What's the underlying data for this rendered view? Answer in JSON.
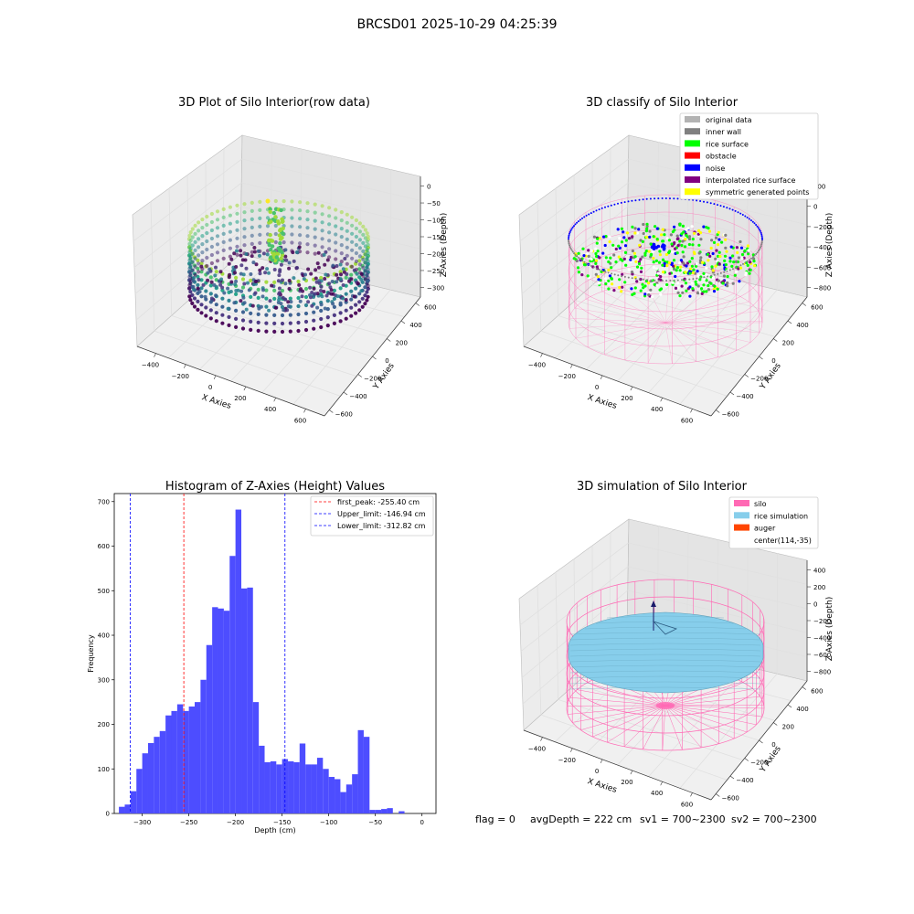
{
  "figure": {
    "suptitle": "BRCSD01 2025-10-29 04:25:39",
    "status_line": {
      "flag": "flag = 0",
      "avg_depth": "avgDepth = 222 cm",
      "sv1": "sv1 = 700~2300",
      "sv2": "sv2 = 700~2300"
    }
  },
  "colors": {
    "histogram_bar": "#4d4dff",
    "first_peak_line": "#ff0000",
    "limit_lines": "#0000ff",
    "silo": "#ff69b4",
    "rice_simulation": "#87ceeb",
    "auger": "#ff4500",
    "rice_surface": "#00ff00",
    "noise": "#0000ff",
    "obstacle": "#ff0000",
    "inner_wall": "#808080",
    "original_data": "#b3b3b3",
    "interpolated": "#800080",
    "symmetric": "#ffff00"
  },
  "chart_data": [
    {
      "type": "scatter",
      "subtype": "3d-scatter",
      "title": "3D Plot of Silo Interior(row data)",
      "xlabel": "X Axies",
      "ylabel": "Y Axies",
      "zlabel": "Z Axies (Depth)",
      "x_ticks": [
        "−400",
        "−200",
        "0",
        "200",
        "400",
        "600"
      ],
      "y_ticks": [
        "−600",
        "−400",
        "−200",
        "0",
        "200",
        "400",
        "600"
      ],
      "z_ticks": [
        "0",
        "−50",
        "−100",
        "−150",
        "−200",
        "−250",
        "−300"
      ],
      "colormap": "viridis"
    },
    {
      "type": "scatter",
      "subtype": "3d-scatter",
      "title": "3D classify of Silo Interior",
      "xlabel": "X Axies",
      "ylabel": "Y Axies",
      "zlabel": "Z Axies (Depth)",
      "x_ticks": [
        "−400",
        "−200",
        "0",
        "200",
        "400",
        "600"
      ],
      "y_ticks": [
        "−600",
        "−400",
        "−200",
        "0",
        "200",
        "400",
        "600"
      ],
      "z_ticks": [
        "200",
        "0",
        "−200",
        "−400",
        "−600",
        "−800"
      ],
      "legend_position": "upper-right",
      "legend": [
        {
          "label": "original data",
          "color": "#b3b3b3"
        },
        {
          "label": "inner wall",
          "color": "#808080"
        },
        {
          "label": "rice surface",
          "color": "#00ff00"
        },
        {
          "label": "obstacle",
          "color": "#ff0000"
        },
        {
          "label": "noise",
          "color": "#0000ff"
        },
        {
          "label": "interpolated rice surface",
          "color": "#800080"
        },
        {
          "label": "symmetric generated points",
          "color": "#ffff00"
        }
      ]
    },
    {
      "type": "bar",
      "subtype": "histogram",
      "title": "Histogram of Z-Axies (Height) Values",
      "xlabel": "Depth (cm)",
      "ylabel": "Frequency",
      "xlim": [
        -330,
        15
      ],
      "ylim": [
        0,
        718
      ],
      "x_ticks": [
        -300,
        -250,
        -200,
        -150,
        -100,
        -50,
        0
      ],
      "y_ticks": [
        0,
        100,
        200,
        300,
        400,
        500,
        600,
        700
      ],
      "x_tick_labels": [
        "−300",
        "−250",
        "−200",
        "−150",
        "−100",
        "−50",
        "0"
      ],
      "y_tick_labels": [
        "0",
        "100",
        "200",
        "300",
        "400",
        "500",
        "600",
        "700"
      ],
      "bin_start": -325,
      "bin_width": 6.25,
      "values": [
        15,
        20,
        50,
        100,
        135,
        158,
        172,
        185,
        220,
        230,
        245,
        230,
        240,
        250,
        300,
        378,
        463,
        460,
        455,
        578,
        682,
        505,
        507,
        250,
        152,
        115,
        117,
        110,
        122,
        117,
        115,
        157,
        110,
        110,
        125,
        100,
        82,
        77,
        48,
        65,
        88,
        187,
        172,
        8,
        8,
        10,
        12,
        0,
        5
      ],
      "vlines": [
        {
          "x": -255.4,
          "label": "first_peak: -255.40 cm",
          "color": "#ff0000"
        },
        {
          "x": -146.94,
          "label": "Upper_limit: -146.94 cm",
          "color": "#0000ff"
        },
        {
          "x": -312.82,
          "label": "Lower_limit: -312.82 cm",
          "color": "#0000ff"
        }
      ],
      "legend_position": "upper-right",
      "grid": false
    },
    {
      "type": "scatter",
      "subtype": "3d-surface",
      "title": "3D simulation of Silo Interior",
      "xlabel": "X Axies",
      "ylabel": "Y Axies",
      "zlabel": "Z Axies (Depth)",
      "x_ticks": [
        "−400",
        "−200",
        "0",
        "200",
        "400",
        "600"
      ],
      "y_ticks": [
        "−600",
        "−400",
        "−200",
        "0",
        "200",
        "400",
        "600"
      ],
      "z_ticks": [
        "400",
        "200",
        "0",
        "−200",
        "−400",
        "−600",
        "−800"
      ],
      "legend_position": "upper-right",
      "legend": [
        {
          "label": "silo",
          "color": "#ff69b4"
        },
        {
          "label": "rice simulation",
          "color": "#87ceeb"
        },
        {
          "label": "auger",
          "color": "#ff4500"
        },
        {
          "label": "center(114,-35)",
          "color": ""
        }
      ]
    }
  ]
}
